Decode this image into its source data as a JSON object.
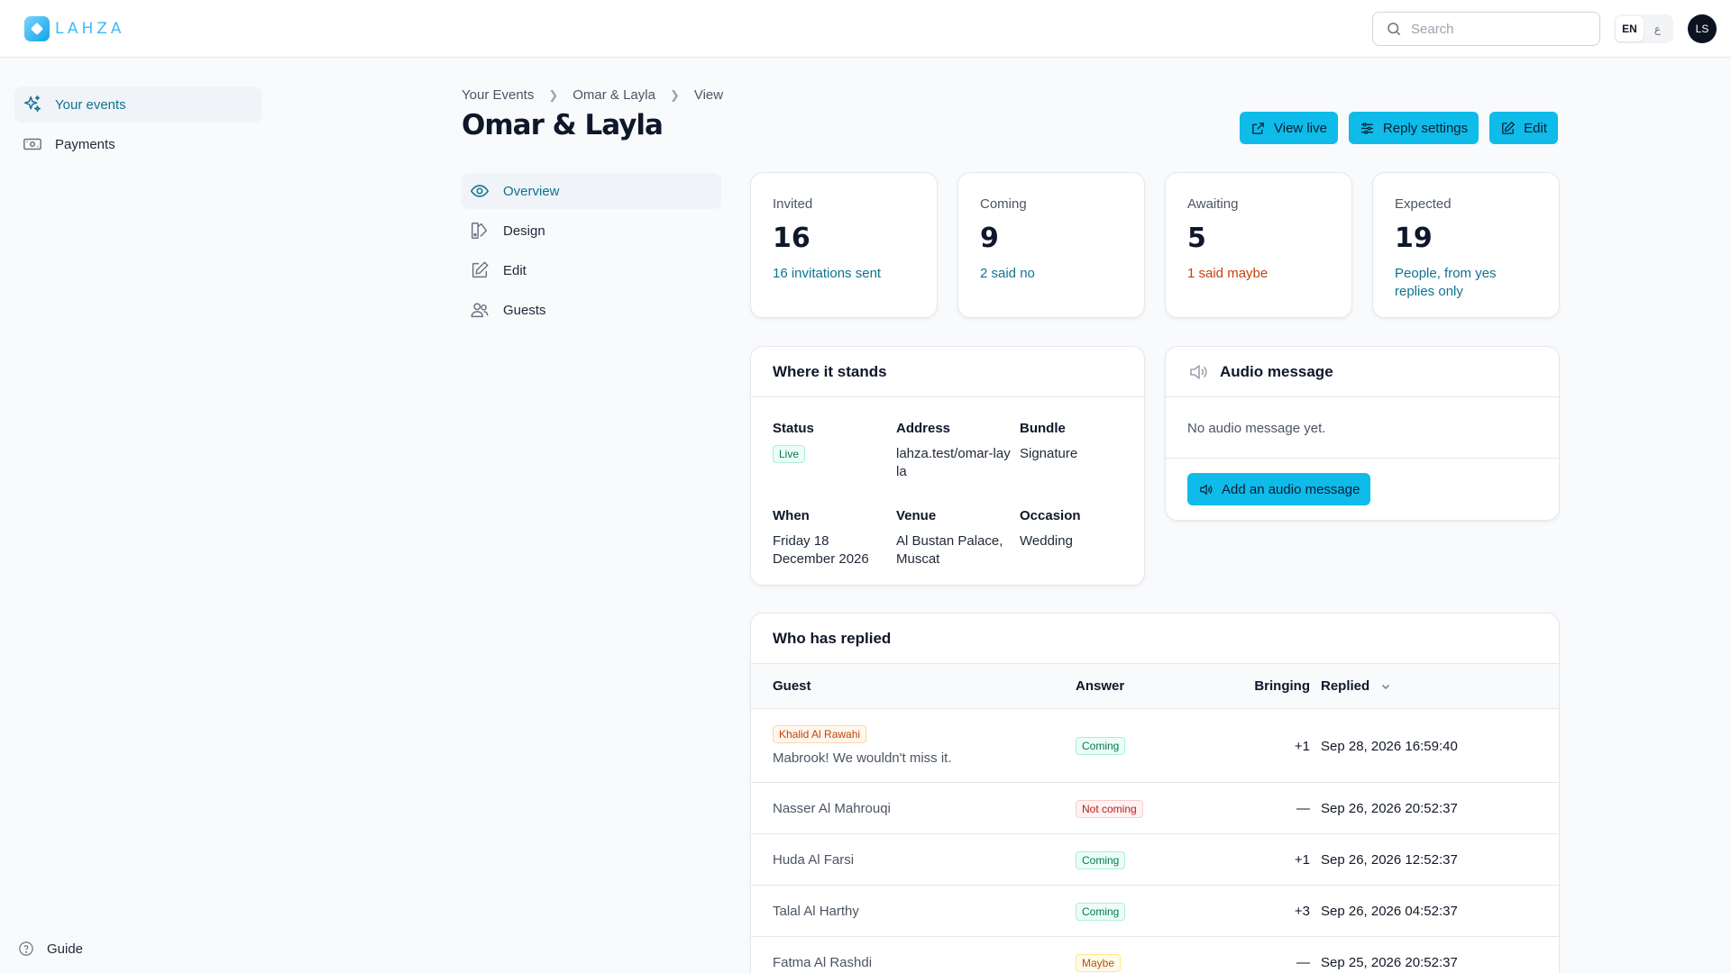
{
  "app": {
    "logo_text": "LAHZA",
    "brand_color": "#0ebbe9"
  },
  "header": {
    "search_placeholder": "Search",
    "lang_active": "EN",
    "lang_alt": "ع",
    "avatar_initials": "LS"
  },
  "sidebar": {
    "items": [
      {
        "label": "Your events",
        "icon": "sparkles-icon",
        "active": true
      },
      {
        "label": "Payments",
        "icon": "banknote-icon",
        "active": false
      }
    ],
    "guide_label": "Guide"
  },
  "breadcrumb": [
    "Your Events",
    "Omar & Layla",
    "View"
  ],
  "page_title": "Omar & Layla",
  "actions": {
    "view_live": "View live",
    "reply_settings": "Reply settings",
    "edit": "Edit"
  },
  "event_nav": [
    {
      "label": "Overview",
      "icon": "eye-icon",
      "active": true
    },
    {
      "label": "Design",
      "icon": "palette-icon",
      "active": false
    },
    {
      "label": "Edit",
      "icon": "pencil-icon",
      "active": false
    },
    {
      "label": "Guests",
      "icon": "users-icon",
      "active": false
    }
  ],
  "stats": [
    {
      "label": "Invited",
      "value": "16",
      "note": "16 invitations sent",
      "note_color": "cyan"
    },
    {
      "label": "Coming",
      "value": "9",
      "note": "2 said no",
      "note_color": "cyan"
    },
    {
      "label": "Awaiting",
      "value": "5",
      "note": "1 said maybe",
      "note_color": "orange"
    },
    {
      "label": "Expected",
      "value": "19",
      "note": "People, from yes replies only",
      "note_color": "cyan"
    }
  ],
  "where_it_stands": {
    "title": "Where it stands",
    "status_label": "Status",
    "status_value": "Live",
    "address_label": "Address",
    "address_value": "lahza.test/omar-layla",
    "bundle_label": "Bundle",
    "bundle_value": "Signature",
    "when_label": "When",
    "when_value": "Friday 18 December 2026",
    "venue_label": "Venue",
    "venue_value": "Al Bustan Palace, Muscat",
    "occasion_label": "Occasion",
    "occasion_value": "Wedding"
  },
  "audio": {
    "title": "Audio message",
    "empty_text": "No audio message yet.",
    "add_button": "Add an audio message"
  },
  "replies": {
    "title": "Who has replied",
    "columns": {
      "guest": "Guest",
      "answer": "Answer",
      "bringing": "Bringing",
      "replied": "Replied"
    },
    "rows": [
      {
        "guest": "Khalid Al Rawahi",
        "message": "Mabrook! We wouldn't miss it.",
        "answer": "Coming",
        "bringing": "+1",
        "replied": "Sep 28, 2026 16:59:40"
      },
      {
        "guest": "Nasser Al Mahrouqi",
        "answer": "Not coming",
        "bringing": "—",
        "replied": "Sep 26, 2026 20:52:37"
      },
      {
        "guest": "Huda Al Farsi",
        "answer": "Coming",
        "bringing": "+1",
        "replied": "Sep 26, 2026 12:52:37"
      },
      {
        "guest": "Talal Al Harthy",
        "answer": "Coming",
        "bringing": "+3",
        "replied": "Sep 26, 2026 04:52:37"
      },
      {
        "guest": "Fatma Al Rashdi",
        "answer": "Maybe",
        "bringing": "—",
        "replied": "Sep 25, 2026 20:52:37"
      }
    ]
  }
}
